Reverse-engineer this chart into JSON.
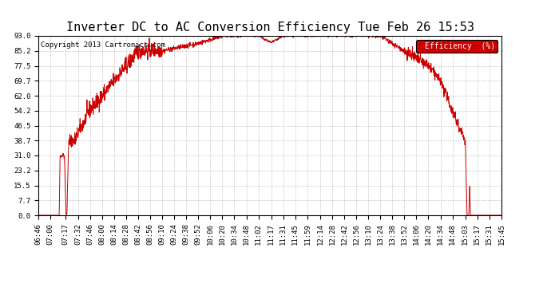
{
  "title": "Inverter DC to AC Conversion Efficiency Tue Feb 26 15:53",
  "copyright": "Copyright 2013 Cartronics.com",
  "legend_label": "Efficiency  (%)",
  "legend_bg": "#cc0000",
  "legend_text_color": "#ffffff",
  "line_color": "#cc0000",
  "bg_color": "#ffffff",
  "plot_bg_color": "#ffffff",
  "grid_color": "#aaaaaa",
  "yticks": [
    0.0,
    7.7,
    15.5,
    23.2,
    31.0,
    38.7,
    46.5,
    54.2,
    62.0,
    69.7,
    77.5,
    85.2,
    93.0
  ],
  "xtick_labels": [
    "06:46",
    "07:00",
    "07:17",
    "07:32",
    "07:46",
    "08:00",
    "08:14",
    "08:28",
    "08:42",
    "08:56",
    "09:10",
    "09:24",
    "09:38",
    "09:52",
    "10:06",
    "10:20",
    "10:34",
    "10:48",
    "11:02",
    "11:17",
    "11:31",
    "11:45",
    "11:59",
    "12:14",
    "12:28",
    "12:42",
    "12:56",
    "13:10",
    "13:24",
    "13:38",
    "13:52",
    "14:06",
    "14:20",
    "14:34",
    "14:48",
    "15:03",
    "15:17",
    "15:31",
    "15:45"
  ],
  "title_fontsize": 11,
  "axis_fontsize": 6.5,
  "copyright_fontsize": 6.5,
  "ymax": 93.0,
  "ymin": 0.0,
  "figwidth": 6.9,
  "figheight": 3.75,
  "dpi": 100
}
